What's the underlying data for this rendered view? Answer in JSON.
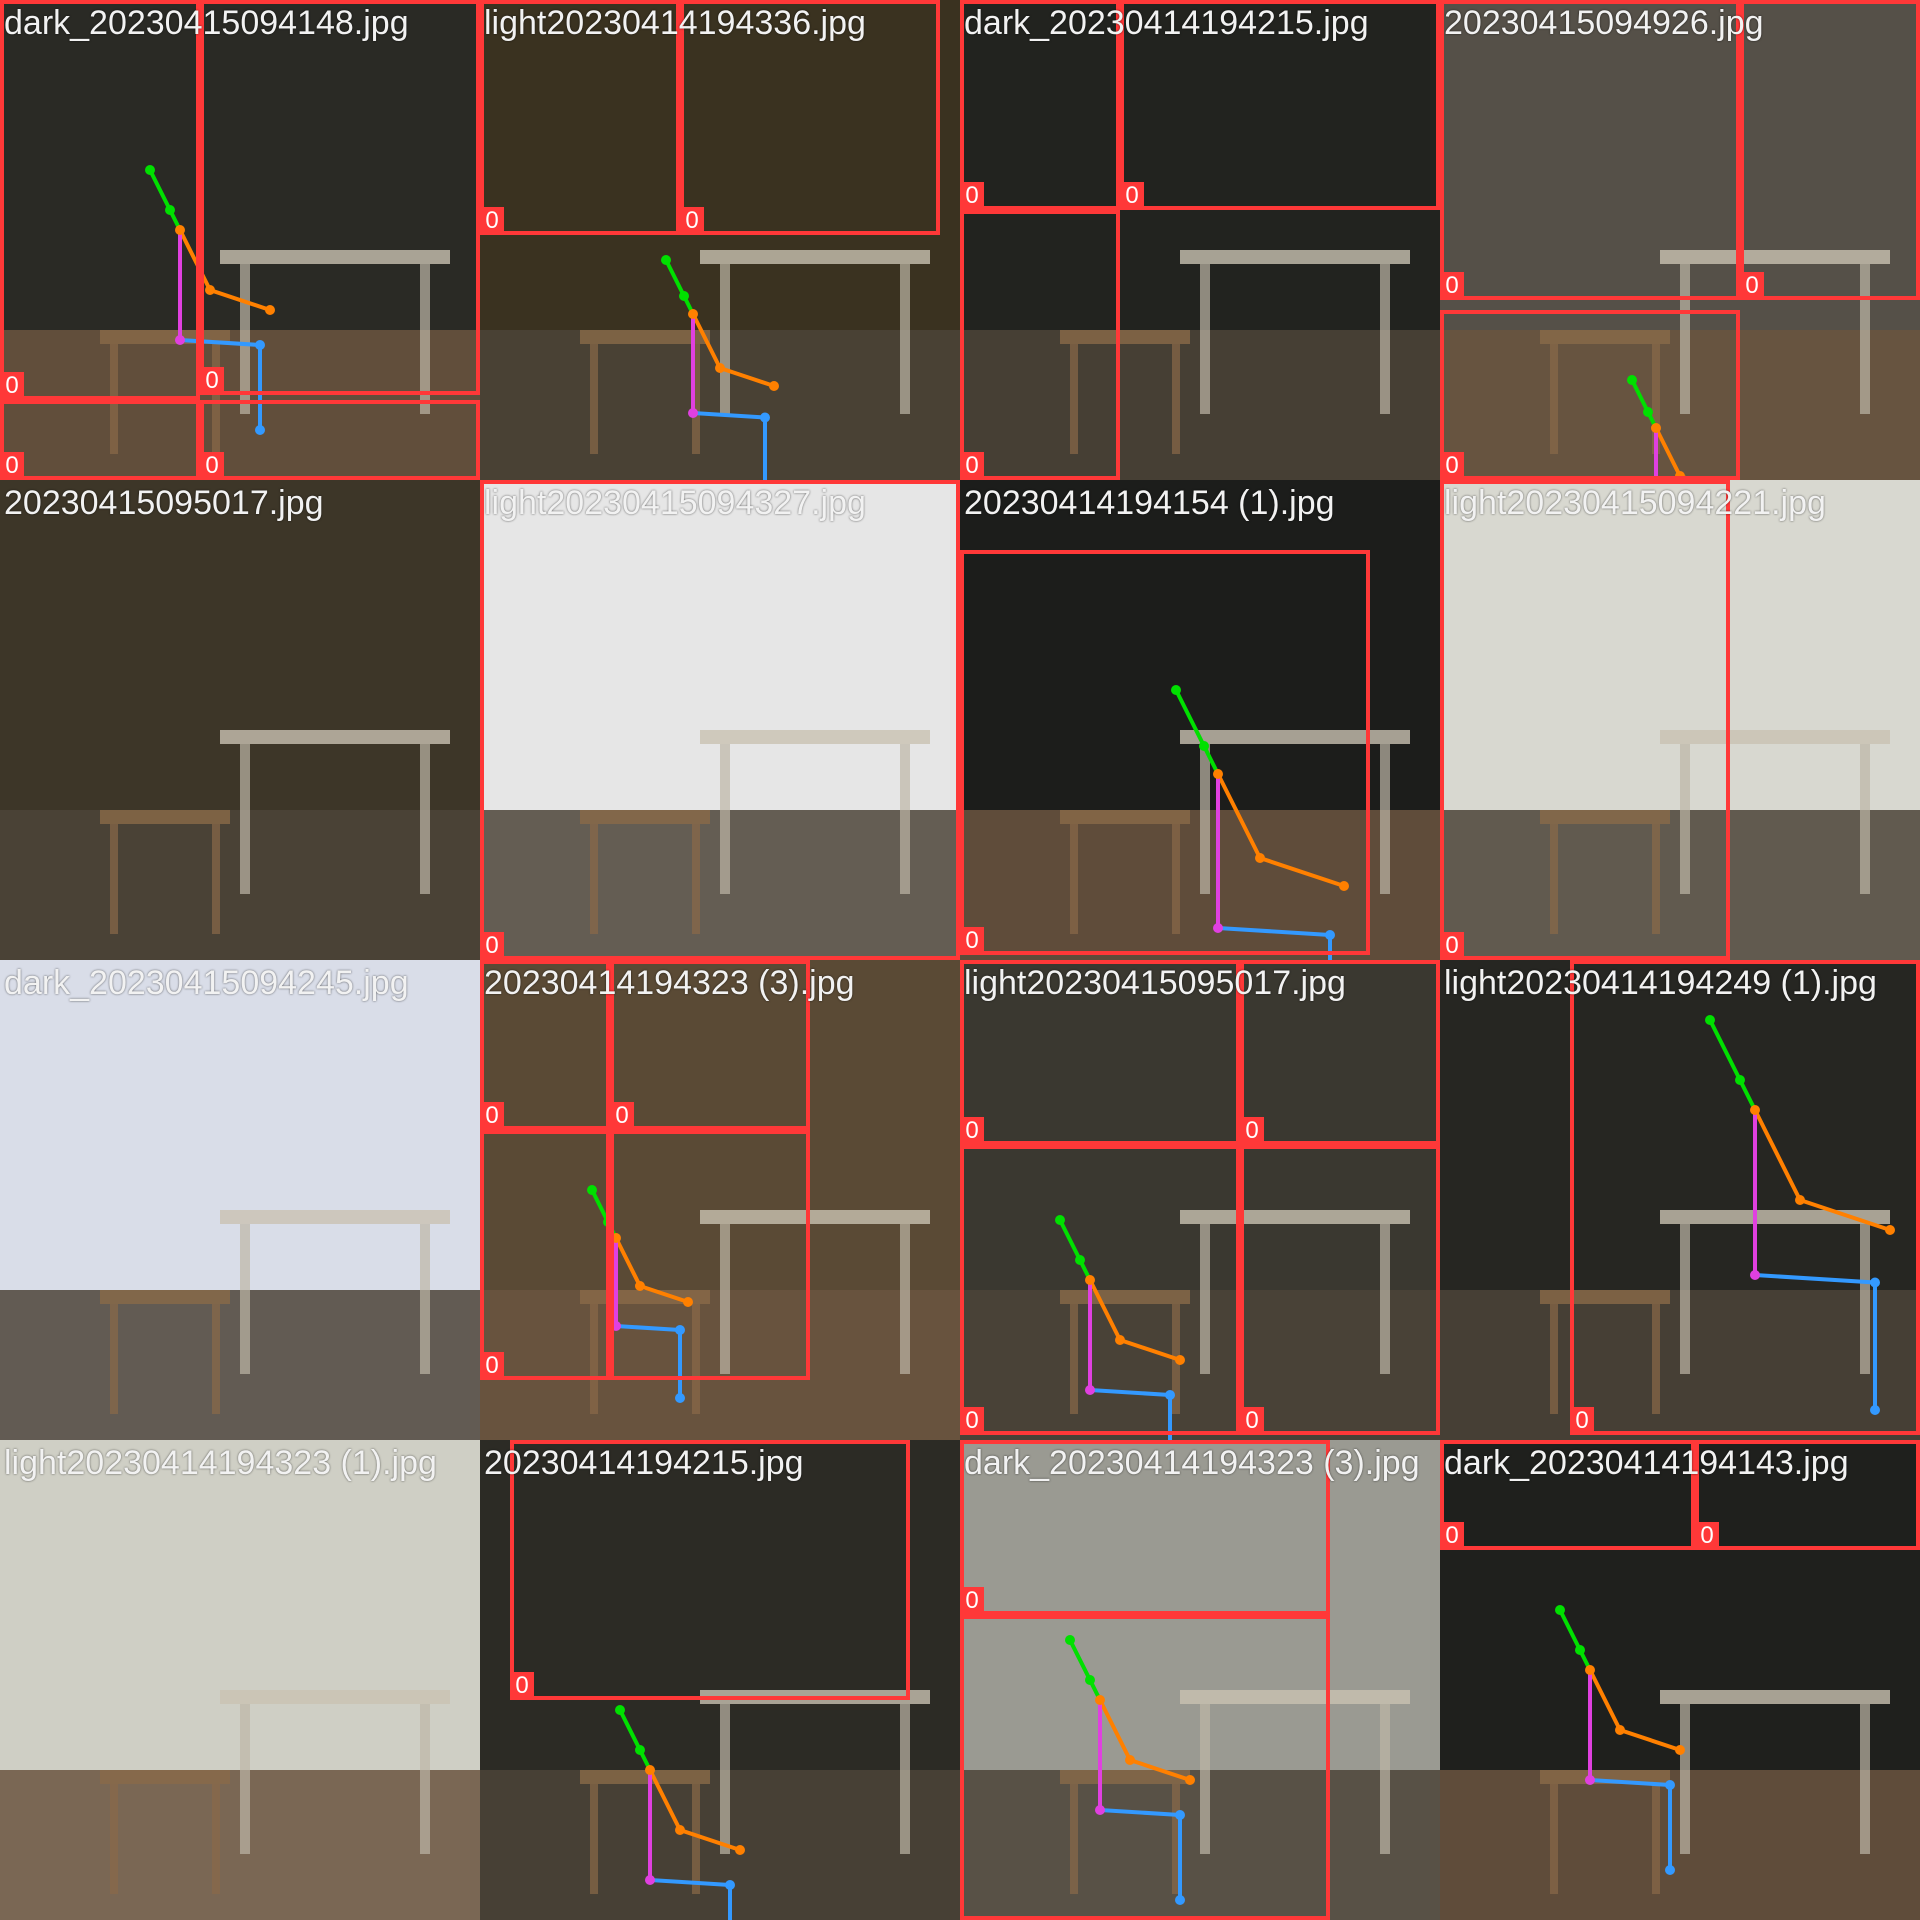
{
  "colors": {
    "box": "#ff3838",
    "head": "#00e000",
    "arm": "#ff8000",
    "torso": "#e040e0",
    "leg": "#3399ff"
  },
  "tiles": [
    {
      "caption": "dark_20230415094148.jpg",
      "scene": "dark-indoor",
      "labels": [
        "0",
        "0",
        "0",
        "0"
      ]
    },
    {
      "caption": "light20230414194336.jpg",
      "scene": "mixed-indoor",
      "labels": [
        "0",
        "0"
      ]
    },
    {
      "caption": "dark_20230414194215.jpg",
      "scene": "dark-indoor",
      "labels": [
        "0",
        "0",
        "0"
      ]
    },
    {
      "caption": "20230415094926.jpg",
      "scene": "mixed-indoor",
      "labels": [
        "0",
        "0",
        "0"
      ]
    },
    {
      "caption": "20230415095017.jpg",
      "scene": "mixed-indoor",
      "labels": []
    },
    {
      "caption": "light20230415094327.jpg",
      "scene": "bright-indoor",
      "labels": [
        "0"
      ]
    },
    {
      "caption": "20230414194154 (1).jpg",
      "scene": "dark-indoor",
      "labels": [
        "0"
      ]
    },
    {
      "caption": "light20230415094221.jpg",
      "scene": "bright-indoor",
      "labels": [
        "0"
      ]
    },
    {
      "caption": "dark_20230415094245.jpg",
      "scene": "bright-indoor",
      "labels": []
    },
    {
      "caption": "20230414194323 (3).jpg",
      "scene": "mixed-indoor",
      "labels": [
        "0",
        "0",
        "0"
      ]
    },
    {
      "caption": "light20230415095017.jpg",
      "scene": "mixed-indoor",
      "labels": [
        "0",
        "0",
        "0",
        "0"
      ]
    },
    {
      "caption": "light20230414194249 (1).jpg",
      "scene": "dark-indoor",
      "labels": [
        "0"
      ]
    },
    {
      "caption": "light20230414194323 (1).jpg",
      "scene": "bright-indoor",
      "labels": []
    },
    {
      "caption": "20230414194215.jpg",
      "scene": "dark-indoor",
      "labels": [
        "0"
      ]
    },
    {
      "caption": "dark_20230414194323 (3).jpg",
      "scene": "mixed-indoor",
      "labels": [
        "0"
      ]
    },
    {
      "caption": "dark_20230414194143.jpg",
      "scene": "dark-indoor",
      "labels": [
        "0",
        "0"
      ]
    }
  ]
}
